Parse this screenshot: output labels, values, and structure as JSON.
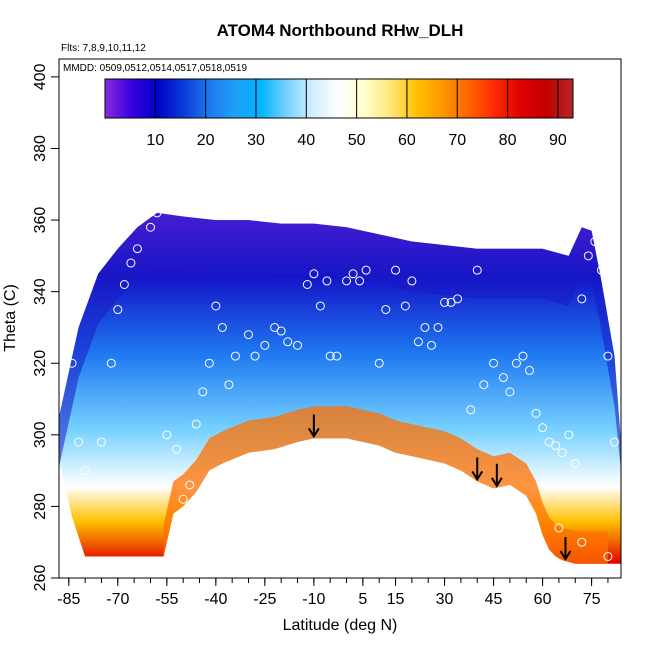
{
  "chart_data": {
    "type": "heatmap",
    "title": "ATOM4 Northbound RHw_DLH",
    "annotations": {
      "flights": "Flts: 7,8,9,10,11,12",
      "dates": "MMDD: 0509,0512,0514,0517,0518,0519"
    },
    "xlabel": "Latitude (deg N)",
    "ylabel": "Theta (C)",
    "xlim": [
      -88,
      84
    ],
    "ylim": [
      260,
      405
    ],
    "xticks": [
      -85,
      -70,
      -55,
      -40,
      -25,
      -10,
      5,
      15,
      30,
      45,
      60,
      75
    ],
    "xtick_labels": [
      "-85",
      "-70",
      "-55",
      "-40",
      "-25",
      "-10",
      "5",
      "15",
      "30",
      "45",
      "60",
      "75"
    ],
    "yticks": [
      260,
      280,
      300,
      320,
      340,
      360,
      380,
      400
    ],
    "ytick_labels": [
      "260",
      "280",
      "300",
      "320",
      "340",
      "360",
      "380",
      "400"
    ],
    "colorbar": {
      "range": [
        0,
        93
      ],
      "ticks": [
        10,
        20,
        30,
        40,
        50,
        60,
        70,
        80,
        90
      ],
      "tick_labels": [
        "10",
        "20",
        "30",
        "40",
        "50",
        "60",
        "70",
        "80",
        "90"
      ],
      "colors": [
        "#8a2be2",
        "#3a00e0",
        "#0000c8",
        "#0a3ad8",
        "#1e78f0",
        "#1ea0f8",
        "#00b4ff",
        "#78d2ff",
        "#d2eeff",
        "#ffffff",
        "#ffffc8",
        "#ffe678",
        "#ffc000",
        "#ff9600",
        "#ff6400",
        "#ff2800",
        "#e00000",
        "#c00000",
        "#b42828"
      ]
    },
    "surface_boundary_theta": [
      [
        -56,
        266
      ],
      [
        -53,
        278
      ],
      [
        -50,
        280
      ],
      [
        -46,
        284
      ],
      [
        -42,
        290
      ],
      [
        -38,
        292
      ],
      [
        -30,
        295
      ],
      [
        -22,
        296
      ],
      [
        -15,
        298
      ],
      [
        -10,
        299
      ],
      [
        -5,
        299
      ],
      [
        0,
        299
      ],
      [
        5,
        298
      ],
      [
        10,
        297
      ],
      [
        15,
        295
      ],
      [
        20,
        294
      ],
      [
        25,
        293
      ],
      [
        30,
        292
      ],
      [
        35,
        290
      ],
      [
        40,
        287
      ],
      [
        45,
        285
      ],
      [
        50,
        286
      ],
      [
        55,
        283
      ],
      [
        58,
        278
      ],
      [
        60,
        272
      ],
      [
        62,
        268
      ],
      [
        64,
        266
      ],
      [
        66,
        265
      ],
      [
        70,
        264
      ],
      [
        75,
        264
      ],
      [
        80,
        264
      ]
    ],
    "top_boundary_theta": [
      [
        -88,
        305
      ],
      [
        -82,
        330
      ],
      [
        -76,
        345
      ],
      [
        -70,
        352
      ],
      [
        -64,
        358
      ],
      [
        -58,
        362
      ],
      [
        -50,
        361
      ],
      [
        -40,
        360
      ],
      [
        -30,
        360
      ],
      [
        -20,
        359
      ],
      [
        -10,
        359
      ],
      [
        0,
        358
      ],
      [
        10,
        356
      ],
      [
        20,
        354
      ],
      [
        30,
        353
      ],
      [
        40,
        352
      ],
      [
        50,
        352
      ],
      [
        60,
        352
      ],
      [
        68,
        350
      ],
      [
        72,
        358
      ],
      [
        75,
        357
      ],
      [
        78,
        343
      ],
      [
        82,
        322
      ],
      [
        84,
        298
      ]
    ],
    "flight_descent_markers_lat": [
      -10,
      40,
      46,
      67
    ],
    "sample_points": [
      [
        -85,
        330
      ],
      [
        -84,
        320
      ],
      [
        -82,
        298
      ],
      [
        -80,
        290
      ],
      [
        -75,
        298
      ],
      [
        -72,
        320
      ],
      [
        -70,
        335
      ],
      [
        -68,
        342
      ],
      [
        -66,
        348
      ],
      [
        -64,
        352
      ],
      [
        -60,
        358
      ],
      [
        -58,
        362
      ],
      [
        -55,
        300
      ],
      [
        -52,
        296
      ],
      [
        -50,
        282
      ],
      [
        -48,
        286
      ],
      [
        -46,
        303
      ],
      [
        -44,
        312
      ],
      [
        -42,
        320
      ],
      [
        -40,
        336
      ],
      [
        -38,
        330
      ],
      [
        -36,
        314
      ],
      [
        -34,
        322
      ],
      [
        -30,
        328
      ],
      [
        -28,
        322
      ],
      [
        -25,
        325
      ],
      [
        -22,
        330
      ],
      [
        -20,
        329
      ],
      [
        -18,
        326
      ],
      [
        -15,
        325
      ],
      [
        -12,
        342
      ],
      [
        -10,
        345
      ],
      [
        -8,
        336
      ],
      [
        -6,
        343
      ],
      [
        -5,
        322
      ],
      [
        -3,
        322
      ],
      [
        0,
        343
      ],
      [
        2,
        345
      ],
      [
        4,
        343
      ],
      [
        6,
        346
      ],
      [
        10,
        320
      ],
      [
        12,
        335
      ],
      [
        15,
        346
      ],
      [
        18,
        336
      ],
      [
        20,
        343
      ],
      [
        22,
        326
      ],
      [
        24,
        330
      ],
      [
        26,
        325
      ],
      [
        28,
        330
      ],
      [
        30,
        337
      ],
      [
        32,
        337
      ],
      [
        34,
        338
      ],
      [
        38,
        307
      ],
      [
        40,
        346
      ],
      [
        42,
        314
      ],
      [
        45,
        320
      ],
      [
        48,
        316
      ],
      [
        50,
        312
      ],
      [
        52,
        320
      ],
      [
        54,
        322
      ],
      [
        56,
        318
      ],
      [
        58,
        306
      ],
      [
        60,
        302
      ],
      [
        62,
        298
      ],
      [
        64,
        297
      ],
      [
        66,
        295
      ],
      [
        68,
        300
      ],
      [
        70,
        292
      ],
      [
        72,
        338
      ],
      [
        74,
        350
      ],
      [
        76,
        354
      ],
      [
        78,
        346
      ],
      [
        80,
        322
      ],
      [
        82,
        298
      ],
      [
        60,
        286
      ],
      [
        65,
        274
      ],
      [
        72,
        270
      ],
      [
        80,
        266
      ]
    ]
  }
}
